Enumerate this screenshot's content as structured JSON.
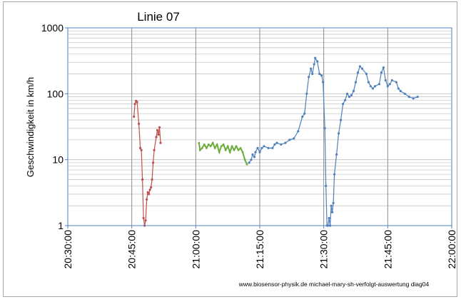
{
  "chart_data": {
    "type": "line",
    "title": "Linie 07",
    "ylabel": "Geschwindigkeit in km/h",
    "xlabel": "",
    "yscale": "log",
    "ylim": [
      1,
      1000
    ],
    "xlim": [
      "20:30:00",
      "22:00:00"
    ],
    "grid": true,
    "legend": "none",
    "x_ticks": [
      "20:30:00",
      "20:45:00",
      "21:00:00",
      "21:15:00",
      "21:30:00",
      "21:45:00",
      "22:00:00"
    ],
    "y_ticks": [
      "1",
      "10",
      "100",
      "1000"
    ],
    "annotation": "www.biosensor-physik.de  michael-mary-sh-verfolgt-auswertung diag04",
    "colors": {
      "series1": "#c0504d",
      "series2": "#6bab3a",
      "series3": "#4f81bd",
      "grid": "#c8c8c8",
      "vgrid": "#8c8c8c",
      "frame": "#4f81bd"
    },
    "series": [
      {
        "points": [
          [
            "20:45:30",
            45
          ],
          [
            "20:45:45",
            70
          ],
          [
            "20:46:00",
            78
          ],
          [
            "20:46:15",
            75
          ],
          [
            "20:46:40",
            35
          ],
          [
            "20:47:00",
            15
          ],
          [
            "20:47:15",
            14
          ],
          [
            "20:47:30",
            5
          ],
          [
            "20:47:45",
            1.3
          ],
          [
            "20:48:00",
            1.0
          ],
          [
            "20:48:15",
            1.2
          ],
          [
            "20:48:30",
            2.5
          ],
          [
            "20:48:45",
            3.2
          ],
          [
            "20:49:00",
            3.0
          ],
          [
            "20:49:15",
            3.5
          ],
          [
            "20:49:30",
            3.8
          ],
          [
            "20:49:45",
            5
          ],
          [
            "20:50:00",
            9
          ],
          [
            "20:50:15",
            14
          ],
          [
            "20:50:45",
            22
          ],
          [
            "20:51:00",
            28
          ],
          [
            "20:51:15",
            24
          ],
          [
            "20:51:30",
            31
          ],
          [
            "20:51:45",
            18
          ]
        ]
      },
      {
        "points": [
          [
            "21:00:45",
            18
          ],
          [
            "21:01:00",
            14
          ],
          [
            "21:01:30",
            15
          ],
          [
            "21:02:00",
            17
          ],
          [
            "21:02:30",
            15
          ],
          [
            "21:03:00",
            17
          ],
          [
            "21:03:30",
            16
          ],
          [
            "21:04:00",
            18
          ],
          [
            "21:04:30",
            15
          ],
          [
            "21:05:00",
            17
          ],
          [
            "21:05:30",
            13
          ],
          [
            "21:06:00",
            16
          ],
          [
            "21:06:30",
            17
          ],
          [
            "21:07:00",
            14
          ],
          [
            "21:07:30",
            16
          ],
          [
            "21:08:00",
            13
          ],
          [
            "21:08:30",
            16
          ],
          [
            "21:09:00",
            14
          ],
          [
            "21:09:30",
            16
          ],
          [
            "21:10:00",
            14
          ],
          [
            "21:10:30",
            15
          ],
          [
            "21:11:00",
            13
          ],
          [
            "21:11:30",
            10
          ],
          [
            "21:12:00",
            8.5
          ]
        ]
      },
      {
        "points": [
          [
            "21:12:30",
            9
          ],
          [
            "21:13:00",
            10
          ],
          [
            "21:13:20",
            12
          ],
          [
            "21:13:45",
            11
          ],
          [
            "21:14:00",
            13
          ],
          [
            "21:14:30",
            15
          ],
          [
            "21:15:00",
            13
          ],
          [
            "21:15:30",
            15
          ],
          [
            "21:16:00",
            16
          ],
          [
            "21:17:00",
            15
          ],
          [
            "21:18:00",
            15
          ],
          [
            "21:18:30",
            17
          ],
          [
            "21:19:00",
            18
          ],
          [
            "21:20:00",
            17
          ],
          [
            "21:21:00",
            18
          ],
          [
            "21:22:00",
            20
          ],
          [
            "21:23:00",
            21
          ],
          [
            "21:24:00",
            27
          ],
          [
            "21:25:00",
            45
          ],
          [
            "21:25:30",
            50
          ],
          [
            "21:26:00",
            100
          ],
          [
            "21:26:30",
            180
          ],
          [
            "21:27:00",
            240
          ],
          [
            "21:27:20",
            200
          ],
          [
            "21:27:45",
            280
          ],
          [
            "21:28:00",
            350
          ],
          [
            "21:28:30",
            310
          ],
          [
            "21:29:00",
            200
          ],
          [
            "21:29:30",
            190
          ],
          [
            "21:29:50",
            150
          ],
          [
            "21:30:15",
            30
          ],
          [
            "21:30:30",
            4
          ],
          [
            "21:30:45",
            1.0
          ],
          [
            "21:31:00",
            1.0
          ],
          [
            "21:31:15",
            1.3
          ],
          [
            "21:31:30",
            1.0
          ],
          [
            "21:31:45",
            2
          ],
          [
            "21:32:00",
            1.6
          ],
          [
            "21:32:15",
            2.2
          ],
          [
            "21:32:30",
            6
          ],
          [
            "21:33:00",
            12
          ],
          [
            "21:33:30",
            25
          ],
          [
            "21:34:00",
            40
          ],
          [
            "21:34:30",
            70
          ],
          [
            "21:35:00",
            80
          ],
          [
            "21:35:30",
            100
          ],
          [
            "21:36:00",
            90
          ],
          [
            "21:36:30",
            95
          ],
          [
            "21:37:00",
            110
          ],
          [
            "21:37:30",
            150
          ],
          [
            "21:38:00",
            210
          ],
          [
            "21:38:30",
            260
          ],
          [
            "21:39:00",
            240
          ],
          [
            "21:40:00",
            200
          ],
          [
            "21:40:30",
            150
          ],
          [
            "21:41:00",
            130
          ],
          [
            "21:41:30",
            120
          ],
          [
            "21:42:00",
            130
          ],
          [
            "21:43:00",
            140
          ],
          [
            "21:43:30",
            210
          ],
          [
            "21:44:00",
            250
          ],
          [
            "21:44:30",
            160
          ],
          [
            "21:45:00",
            130
          ],
          [
            "21:45:30",
            140
          ],
          [
            "21:46:00",
            160
          ],
          [
            "21:47:00",
            150
          ],
          [
            "21:47:30",
            120
          ],
          [
            "21:48:00",
            110
          ],
          [
            "21:49:00",
            100
          ],
          [
            "21:50:00",
            90
          ],
          [
            "21:51:00",
            85
          ],
          [
            "21:52:00",
            90
          ]
        ]
      }
    ]
  }
}
